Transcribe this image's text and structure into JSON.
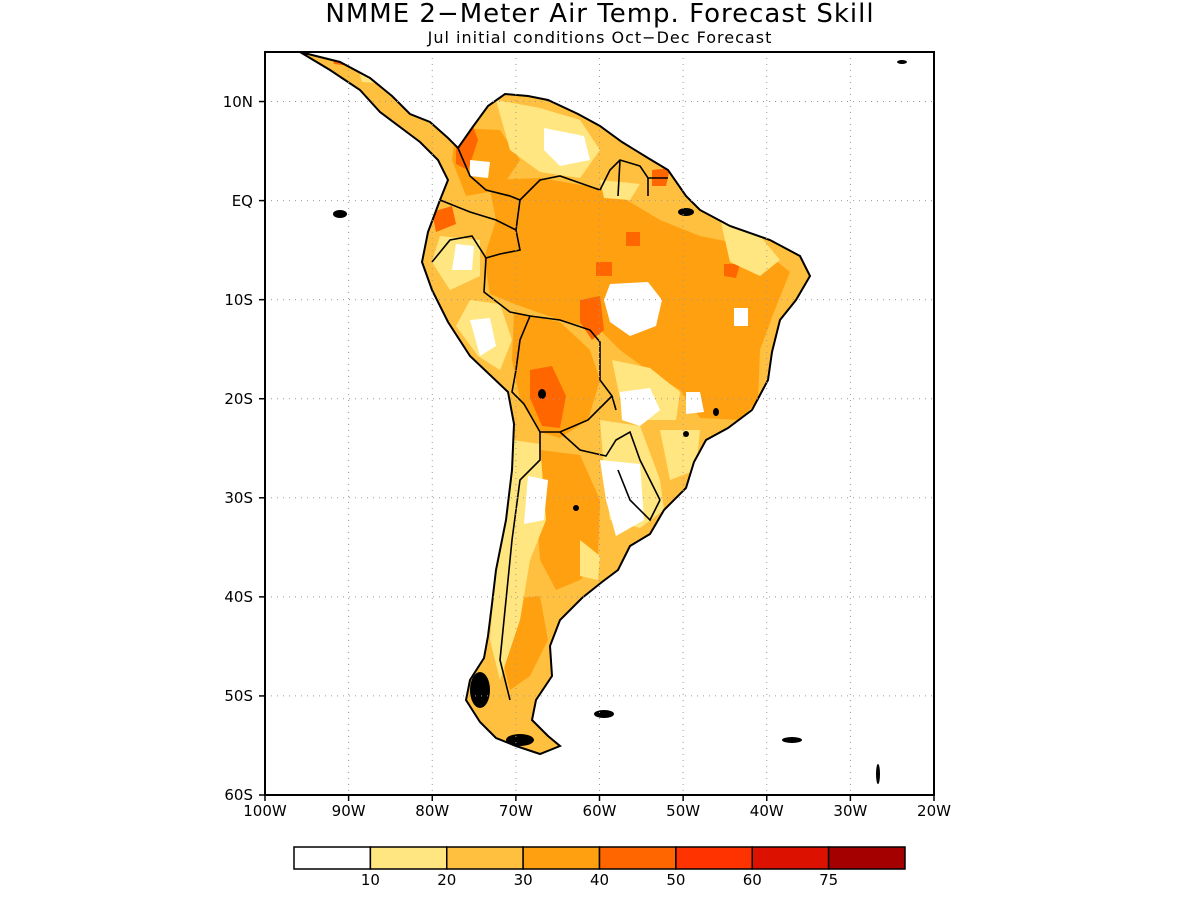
{
  "title": "NMME 2−Meter Air Temp. Forecast Skill",
  "subtitle": "Jul initial conditions   Oct−Dec Forecast",
  "map": {
    "region": "South America",
    "lat_range": [
      -60,
      15
    ],
    "lon_range": [
      -100,
      -20
    ],
    "lat_ticks": [
      {
        "value": 10,
        "label": "10N"
      },
      {
        "value": 0,
        "label": "EQ"
      },
      {
        "value": -10,
        "label": "10S"
      },
      {
        "value": -20,
        "label": "20S"
      },
      {
        "value": -30,
        "label": "30S"
      },
      {
        "value": -40,
        "label": "40S"
      },
      {
        "value": -50,
        "label": "50S"
      },
      {
        "value": -60,
        "label": "60S"
      }
    ],
    "lon_ticks": [
      {
        "value": -100,
        "label": "100W"
      },
      {
        "value": -90,
        "label": "90W"
      },
      {
        "value": -80,
        "label": "80W"
      },
      {
        "value": -70,
        "label": "70W"
      },
      {
        "value": -60,
        "label": "60W"
      },
      {
        "value": -50,
        "label": "50W"
      },
      {
        "value": -40,
        "label": "40W"
      },
      {
        "value": -30,
        "label": "30W"
      },
      {
        "value": -20,
        "label": "20W"
      }
    ],
    "grid": "dotted"
  },
  "colorbar": {
    "bins": [
      {
        "color": "#ffffff"
      },
      {
        "color": "#ffe680"
      },
      {
        "color": "#ffc040"
      },
      {
        "color": "#ffa010"
      },
      {
        "color": "#ff6600"
      },
      {
        "color": "#ff3300"
      },
      {
        "color": "#dd1100"
      },
      {
        "color": "#a50000"
      }
    ],
    "labels": [
      "10",
      "20",
      "30",
      "40",
      "50",
      "60",
      "75"
    ]
  }
}
